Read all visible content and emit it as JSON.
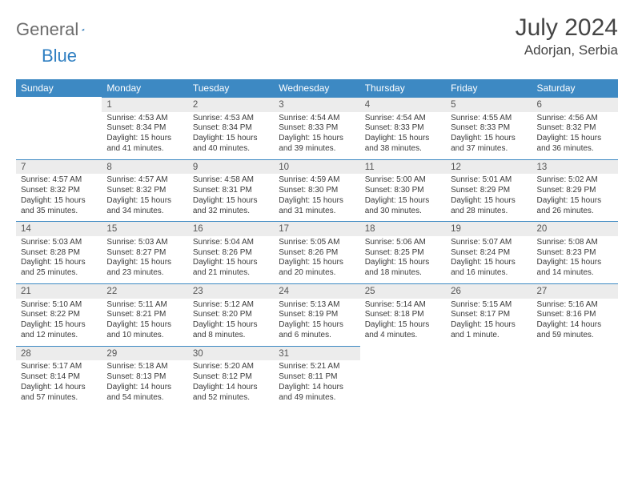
{
  "logo": {
    "textGray": "General",
    "textBlue": "Blue"
  },
  "title": {
    "monthYear": "July 2024",
    "location": "Adorjan, Serbia"
  },
  "dayNames": [
    "Sunday",
    "Monday",
    "Tuesday",
    "Wednesday",
    "Thursday",
    "Friday",
    "Saturday"
  ],
  "colors": {
    "headerBg": "#3d89c3",
    "headerText": "#ffffff",
    "dayNumBg": "#ececec",
    "ruleColor": "#3d89c3"
  },
  "weeks": [
    {
      "nums": [
        "",
        "1",
        "2",
        "3",
        "4",
        "5",
        "6"
      ],
      "cells": [
        "",
        "Sunrise: 4:53 AM\nSunset: 8:34 PM\nDaylight: 15 hours and 41 minutes.",
        "Sunrise: 4:53 AM\nSunset: 8:34 PM\nDaylight: 15 hours and 40 minutes.",
        "Sunrise: 4:54 AM\nSunset: 8:33 PM\nDaylight: 15 hours and 39 minutes.",
        "Sunrise: 4:54 AM\nSunset: 8:33 PM\nDaylight: 15 hours and 38 minutes.",
        "Sunrise: 4:55 AM\nSunset: 8:33 PM\nDaylight: 15 hours and 37 minutes.",
        "Sunrise: 4:56 AM\nSunset: 8:32 PM\nDaylight: 15 hours and 36 minutes."
      ]
    },
    {
      "nums": [
        "7",
        "8",
        "9",
        "10",
        "11",
        "12",
        "13"
      ],
      "cells": [
        "Sunrise: 4:57 AM\nSunset: 8:32 PM\nDaylight: 15 hours and 35 minutes.",
        "Sunrise: 4:57 AM\nSunset: 8:32 PM\nDaylight: 15 hours and 34 minutes.",
        "Sunrise: 4:58 AM\nSunset: 8:31 PM\nDaylight: 15 hours and 32 minutes.",
        "Sunrise: 4:59 AM\nSunset: 8:30 PM\nDaylight: 15 hours and 31 minutes.",
        "Sunrise: 5:00 AM\nSunset: 8:30 PM\nDaylight: 15 hours and 30 minutes.",
        "Sunrise: 5:01 AM\nSunset: 8:29 PM\nDaylight: 15 hours and 28 minutes.",
        "Sunrise: 5:02 AM\nSunset: 8:29 PM\nDaylight: 15 hours and 26 minutes."
      ]
    },
    {
      "nums": [
        "14",
        "15",
        "16",
        "17",
        "18",
        "19",
        "20"
      ],
      "cells": [
        "Sunrise: 5:03 AM\nSunset: 8:28 PM\nDaylight: 15 hours and 25 minutes.",
        "Sunrise: 5:03 AM\nSunset: 8:27 PM\nDaylight: 15 hours and 23 minutes.",
        "Sunrise: 5:04 AM\nSunset: 8:26 PM\nDaylight: 15 hours and 21 minutes.",
        "Sunrise: 5:05 AM\nSunset: 8:26 PM\nDaylight: 15 hours and 20 minutes.",
        "Sunrise: 5:06 AM\nSunset: 8:25 PM\nDaylight: 15 hours and 18 minutes.",
        "Sunrise: 5:07 AM\nSunset: 8:24 PM\nDaylight: 15 hours and 16 minutes.",
        "Sunrise: 5:08 AM\nSunset: 8:23 PM\nDaylight: 15 hours and 14 minutes."
      ]
    },
    {
      "nums": [
        "21",
        "22",
        "23",
        "24",
        "25",
        "26",
        "27"
      ],
      "cells": [
        "Sunrise: 5:10 AM\nSunset: 8:22 PM\nDaylight: 15 hours and 12 minutes.",
        "Sunrise: 5:11 AM\nSunset: 8:21 PM\nDaylight: 15 hours and 10 minutes.",
        "Sunrise: 5:12 AM\nSunset: 8:20 PM\nDaylight: 15 hours and 8 minutes.",
        "Sunrise: 5:13 AM\nSunset: 8:19 PM\nDaylight: 15 hours and 6 minutes.",
        "Sunrise: 5:14 AM\nSunset: 8:18 PM\nDaylight: 15 hours and 4 minutes.",
        "Sunrise: 5:15 AM\nSunset: 8:17 PM\nDaylight: 15 hours and 1 minute.",
        "Sunrise: 5:16 AM\nSunset: 8:16 PM\nDaylight: 14 hours and 59 minutes."
      ]
    },
    {
      "nums": [
        "28",
        "29",
        "30",
        "31",
        "",
        "",
        ""
      ],
      "cells": [
        "Sunrise: 5:17 AM\nSunset: 8:14 PM\nDaylight: 14 hours and 57 minutes.",
        "Sunrise: 5:18 AM\nSunset: 8:13 PM\nDaylight: 14 hours and 54 minutes.",
        "Sunrise: 5:20 AM\nSunset: 8:12 PM\nDaylight: 14 hours and 52 minutes.",
        "Sunrise: 5:21 AM\nSunset: 8:11 PM\nDaylight: 14 hours and 49 minutes.",
        "",
        "",
        ""
      ]
    }
  ]
}
